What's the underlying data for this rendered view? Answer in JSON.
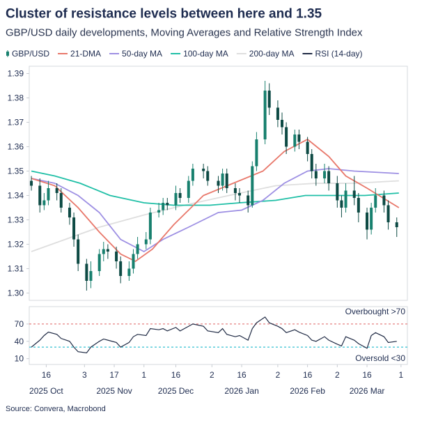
{
  "chart_data": [
    {
      "type": "candlestick",
      "title": "Cluster of resistance levels between here and 1.35",
      "subtitle": "GBP/USD daily developments, Moving Averages and Relative Strength Index",
      "source": "Source: Convera, Macrobond",
      "name": "GBP/USD",
      "up_color": "#17806e",
      "down_color": "#0d4a44",
      "xlim": [
        "2025-10-08",
        "2026-04-04"
      ],
      "ylim": [
        1.297,
        1.393
      ],
      "yticks": [
        {
          "value": 1.3,
          "label": "1.30"
        },
        1.31,
        1.32,
        1.33,
        1.34,
        1.35,
        1.36,
        1.37,
        1.38,
        1.39
      ],
      "x": [
        "2025-10-09",
        "2025-10-13",
        "2025-10-15",
        "2025-10-17",
        "2025-10-21",
        "2025-10-23",
        "2025-10-27",
        "2025-10-29",
        "2025-10-31",
        "2025-11-04",
        "2025-11-06",
        "2025-11-10",
        "2025-11-12",
        "2025-11-14",
        "2025-11-18",
        "2025-11-20",
        "2025-11-24",
        "2025-11-26",
        "2025-11-28",
        "2025-12-02",
        "2025-12-04",
        "2025-12-08",
        "2025-12-10",
        "2025-12-12",
        "2025-12-16",
        "2025-12-18",
        "2025-12-22",
        "2025-12-24",
        "2025-12-29",
        "2025-12-31",
        "2026-01-05",
        "2026-01-07",
        "2026-01-09",
        "2026-01-13",
        "2026-01-15",
        "2026-01-19",
        "2026-01-21",
        "2026-01-23",
        "2026-01-27",
        "2026-01-29",
        "2026-02-02",
        "2026-02-04",
        "2026-02-06",
        "2026-02-10",
        "2026-02-12",
        "2026-02-16",
        "2026-02-18",
        "2026-02-20",
        "2026-02-24",
        "2026-02-26",
        "2026-03-02",
        "2026-03-04",
        "2026-03-06",
        "2026-03-10",
        "2026-03-12",
        "2026-03-16",
        "2026-03-18",
        "2026-03-20",
        "2026-03-24",
        "2026-03-26",
        "2026-03-30"
      ],
      "open": [
        1.346,
        1.344,
        1.336,
        1.338,
        1.343,
        1.341,
        1.335,
        1.331,
        1.322,
        1.312,
        1.305,
        1.309,
        1.316,
        1.318,
        1.317,
        1.313,
        1.307,
        1.31,
        1.316,
        1.32,
        1.322,
        1.333,
        1.334,
        1.337,
        1.336,
        1.341,
        1.339,
        1.346,
        1.351,
        1.35,
        1.346,
        1.344,
        1.349,
        1.343,
        1.341,
        1.34,
        1.336,
        1.352,
        1.363,
        1.383,
        1.376,
        1.371,
        1.368,
        1.36,
        1.365,
        1.362,
        1.357,
        1.35,
        1.347,
        1.35,
        1.345,
        1.338,
        1.335,
        1.342,
        1.339,
        1.333,
        1.326,
        1.335,
        1.34,
        1.336,
        1.329
      ],
      "high": [
        1.348,
        1.347,
        1.341,
        1.346,
        1.345,
        1.343,
        1.337,
        1.333,
        1.324,
        1.314,
        1.313,
        1.318,
        1.321,
        1.32,
        1.319,
        1.315,
        1.313,
        1.318,
        1.323,
        1.325,
        1.335,
        1.337,
        1.339,
        1.339,
        1.344,
        1.343,
        1.348,
        1.353,
        1.353,
        1.352,
        1.348,
        1.351,
        1.351,
        1.345,
        1.343,
        1.342,
        1.354,
        1.366,
        1.387,
        1.386,
        1.379,
        1.374,
        1.37,
        1.367,
        1.367,
        1.364,
        1.359,
        1.353,
        1.353,
        1.352,
        1.348,
        1.34,
        1.345,
        1.348,
        1.341,
        1.335,
        1.337,
        1.343,
        1.342,
        1.338,
        1.331
      ],
      "low": [
        1.342,
        1.333,
        1.334,
        1.336,
        1.338,
        1.333,
        1.328,
        1.319,
        1.309,
        1.301,
        1.302,
        1.307,
        1.313,
        1.314,
        1.31,
        1.304,
        1.305,
        1.308,
        1.314,
        1.318,
        1.32,
        1.331,
        1.332,
        1.334,
        1.334,
        1.337,
        1.337,
        1.344,
        1.347,
        1.344,
        1.341,
        1.342,
        1.341,
        1.338,
        1.337,
        1.333,
        1.335,
        1.35,
        1.361,
        1.373,
        1.368,
        1.365,
        1.357,
        1.358,
        1.359,
        1.354,
        1.347,
        1.344,
        1.345,
        1.342,
        1.335,
        1.331,
        1.333,
        1.336,
        1.329,
        1.322,
        1.324,
        1.333,
        1.333,
        1.326,
        1.323
      ],
      "close": [
        1.344,
        1.336,
        1.338,
        1.343,
        1.341,
        1.335,
        1.331,
        1.322,
        1.312,
        1.305,
        1.309,
        1.316,
        1.318,
        1.317,
        1.313,
        1.307,
        1.31,
        1.316,
        1.32,
        1.322,
        1.333,
        1.334,
        1.337,
        1.336,
        1.341,
        1.339,
        1.346,
        1.351,
        1.35,
        1.346,
        1.344,
        1.349,
        1.343,
        1.341,
        1.34,
        1.336,
        1.352,
        1.363,
        1.383,
        1.376,
        1.371,
        1.368,
        1.36,
        1.365,
        1.362,
        1.357,
        1.35,
        1.347,
        1.35,
        1.345,
        1.338,
        1.335,
        1.342,
        1.339,
        1.333,
        1.326,
        1.335,
        1.34,
        1.336,
        1.329,
        1.327
      ],
      "series": [
        {
          "name": "21-DMA",
          "color": "#e8776a",
          "x": [
            "2025-10-09",
            "2025-10-20",
            "2025-10-31",
            "2025-11-10",
            "2025-11-20",
            "2025-11-27",
            "2025-12-05",
            "2025-12-15",
            "2025-12-29",
            "2026-01-12",
            "2026-01-26",
            "2026-02-05",
            "2026-02-16",
            "2026-02-26",
            "2026-03-06",
            "2026-03-16",
            "2026-03-31"
          ],
          "values": [
            1.347,
            1.344,
            1.335,
            1.325,
            1.316,
            1.313,
            1.318,
            1.328,
            1.34,
            1.345,
            1.35,
            1.358,
            1.363,
            1.356,
            1.348,
            1.343,
            1.335
          ]
        },
        {
          "name": "50-day MA",
          "color": "#9d8fe3",
          "x": [
            "2025-10-09",
            "2025-10-20",
            "2025-10-31",
            "2025-11-10",
            "2025-11-20",
            "2025-12-01",
            "2025-12-10",
            "2025-12-22",
            "2026-01-05",
            "2026-01-16",
            "2026-01-26",
            "2026-02-05",
            "2026-02-16",
            "2026-02-26",
            "2026-03-10",
            "2026-03-31"
          ],
          "values": [
            1.347,
            1.345,
            1.34,
            1.333,
            1.322,
            1.317,
            1.322,
            1.327,
            1.333,
            1.334,
            1.338,
            1.345,
            1.35,
            1.351,
            1.35,
            1.349
          ]
        },
        {
          "name": "100-day MA",
          "color": "#1fbfa6",
          "x": [
            "2025-10-09",
            "2025-10-20",
            "2025-11-01",
            "2025-11-15",
            "2025-12-01",
            "2025-12-15",
            "2026-01-01",
            "2026-01-15",
            "2026-02-01",
            "2026-02-15",
            "2026-03-01",
            "2026-03-15",
            "2026-03-31"
          ],
          "values": [
            1.35,
            1.348,
            1.345,
            1.34,
            1.337,
            1.336,
            1.336,
            1.337,
            1.338,
            1.34,
            1.34,
            1.34,
            1.341
          ]
        },
        {
          "name": "200-day MA",
          "color": "#dedede",
          "x": [
            "2025-10-09",
            "2025-10-25",
            "2025-11-10",
            "2025-12-01",
            "2025-12-20",
            "2026-01-10",
            "2026-02-01",
            "2026-02-20",
            "2026-03-10",
            "2026-03-31"
          ],
          "values": [
            1.317,
            1.322,
            1.327,
            1.332,
            1.336,
            1.34,
            1.344,
            1.345,
            1.345,
            1.346
          ]
        }
      ]
    },
    {
      "type": "line",
      "xlim": [
        "2025-10-08",
        "2026-04-04"
      ],
      "ylim": [
        0,
        100
      ],
      "yticks": [
        10,
        40,
        70
      ],
      "xticks": [
        {
          "value": "2025-10-16",
          "label": "16"
        },
        {
          "value": "2025-11-03",
          "label": "3"
        },
        {
          "value": "2025-11-17",
          "label": "17"
        },
        {
          "value": "2025-12-01",
          "label": "1"
        },
        {
          "value": "2025-12-16",
          "label": "16"
        },
        {
          "value": "2026-01-02",
          "label": "2"
        },
        {
          "value": "2026-01-16",
          "label": "16"
        },
        {
          "value": "2026-02-02",
          "label": "2"
        },
        {
          "value": "2026-02-16",
          "label": "16"
        },
        {
          "value": "2026-03-02",
          "label": "2"
        },
        {
          "value": "2026-03-16",
          "label": "16"
        },
        {
          "value": "2026-04-01",
          "label": "1"
        }
      ],
      "month_labels": [
        {
          "value": "2025-10-16",
          "label": "2025 Oct"
        },
        {
          "value": "2025-11-17",
          "label": "2025 Nov"
        },
        {
          "value": "2025-12-16",
          "label": "2025 Dec"
        },
        {
          "value": "2026-01-16",
          "label": "2026 Jan"
        },
        {
          "value": "2026-02-16",
          "label": "2026 Feb"
        },
        {
          "value": "2026-03-16",
          "label": "2026 Mar"
        }
      ],
      "reference_lines": [
        {
          "value": 70,
          "label": "Overbought >70",
          "color": "#e58080"
        },
        {
          "value": 30,
          "label": "Oversold <30",
          "color": "#35c0d2"
        }
      ],
      "x": [
        "2025-10-09",
        "2025-10-13",
        "2025-10-15",
        "2025-10-17",
        "2025-10-21",
        "2025-10-23",
        "2025-10-27",
        "2025-10-29",
        "2025-10-31",
        "2025-11-04",
        "2025-11-06",
        "2025-11-10",
        "2025-11-12",
        "2025-11-14",
        "2025-11-18",
        "2025-11-20",
        "2025-11-24",
        "2025-11-26",
        "2025-11-28",
        "2025-12-02",
        "2025-12-04",
        "2025-12-08",
        "2025-12-10",
        "2025-12-12",
        "2025-12-16",
        "2025-12-18",
        "2025-12-22",
        "2025-12-24",
        "2025-12-29",
        "2025-12-31",
        "2026-01-05",
        "2026-01-07",
        "2026-01-09",
        "2026-01-13",
        "2026-01-15",
        "2026-01-19",
        "2026-01-21",
        "2026-01-23",
        "2026-01-27",
        "2026-01-29",
        "2026-02-02",
        "2026-02-04",
        "2026-02-06",
        "2026-02-10",
        "2026-02-12",
        "2026-02-16",
        "2026-02-18",
        "2026-02-20",
        "2026-02-24",
        "2026-02-26",
        "2026-03-02",
        "2026-03-04",
        "2026-03-06",
        "2026-03-10",
        "2026-03-12",
        "2026-03-16",
        "2026-03-18",
        "2026-03-20",
        "2026-03-24",
        "2026-03-26",
        "2026-03-30"
      ],
      "series": [
        {
          "name": "RSI (14-day)",
          "color": "#1f2a44",
          "values": [
            30,
            42,
            50,
            56,
            52,
            45,
            40,
            30,
            22,
            20,
            30,
            40,
            44,
            42,
            38,
            30,
            38,
            48,
            52,
            50,
            62,
            60,
            62,
            58,
            64,
            58,
            66,
            70,
            66,
            58,
            55,
            62,
            52,
            48,
            50,
            42,
            62,
            72,
            82,
            72,
            66,
            62,
            55,
            60,
            56,
            50,
            42,
            40,
            48,
            42,
            35,
            32,
            48,
            42,
            36,
            28,
            50,
            55,
            48,
            38,
            40
          ]
        }
      ]
    }
  ]
}
